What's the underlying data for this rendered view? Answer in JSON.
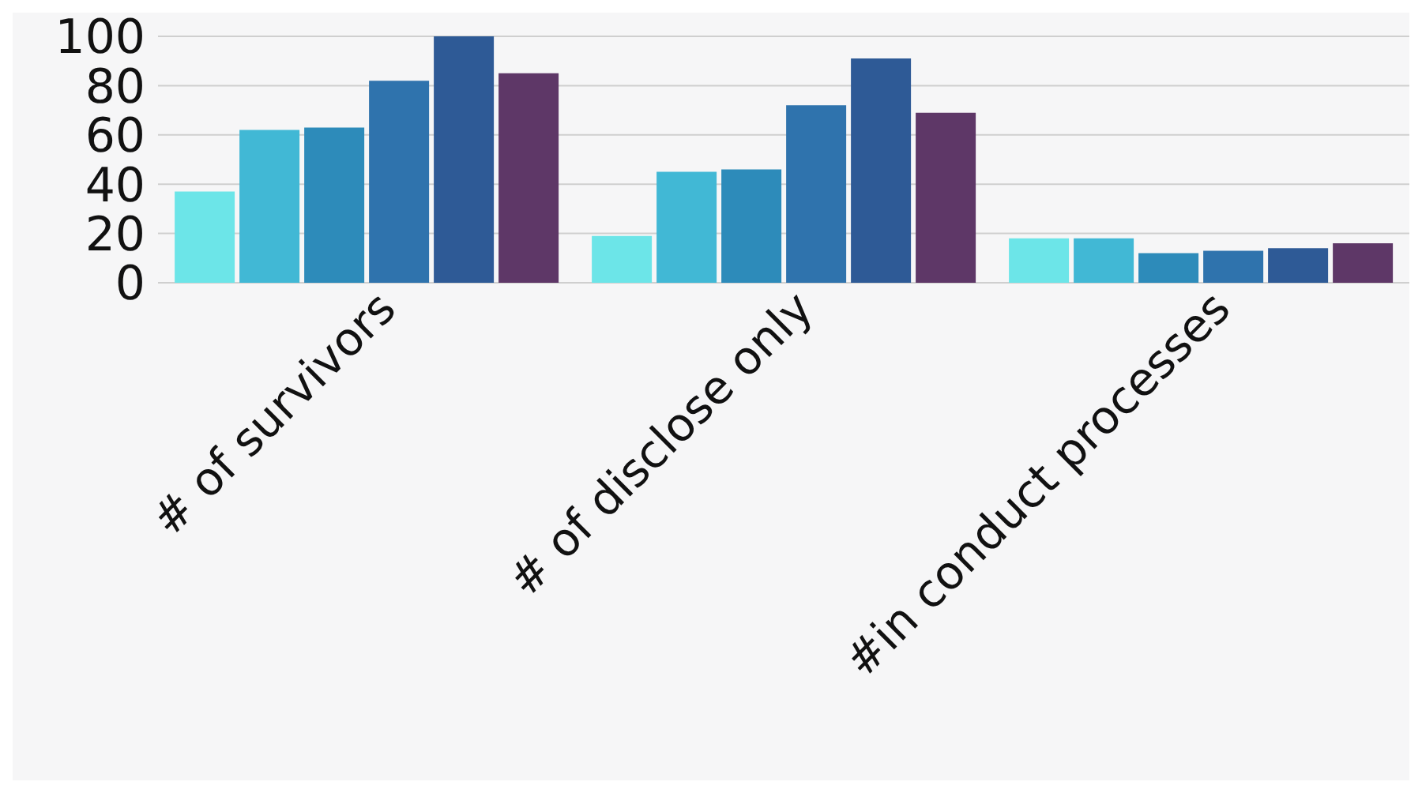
{
  "chart_data": {
    "type": "bar",
    "categories": [
      "# of survivors",
      "# of disclose only",
      "#in conduct processes"
    ],
    "series": [
      {
        "color": "#6ce5e8",
        "values": [
          37,
          19,
          18
        ]
      },
      {
        "color": "#41b8d5",
        "values": [
          62,
          45,
          18
        ]
      },
      {
        "color": "#2d8bba",
        "values": [
          63,
          46,
          12
        ]
      },
      {
        "color": "#2f73ad",
        "values": [
          82,
          72,
          13
        ]
      },
      {
        "color": "#2e5a96",
        "values": [
          100,
          91,
          14
        ]
      },
      {
        "color": "#5e3767",
        "values": [
          85,
          69,
          16
        ]
      }
    ],
    "ylim": [
      0,
      100
    ],
    "yticks": [
      0,
      20,
      40,
      60,
      80,
      100
    ],
    "grid": "y",
    "legend": false
  }
}
